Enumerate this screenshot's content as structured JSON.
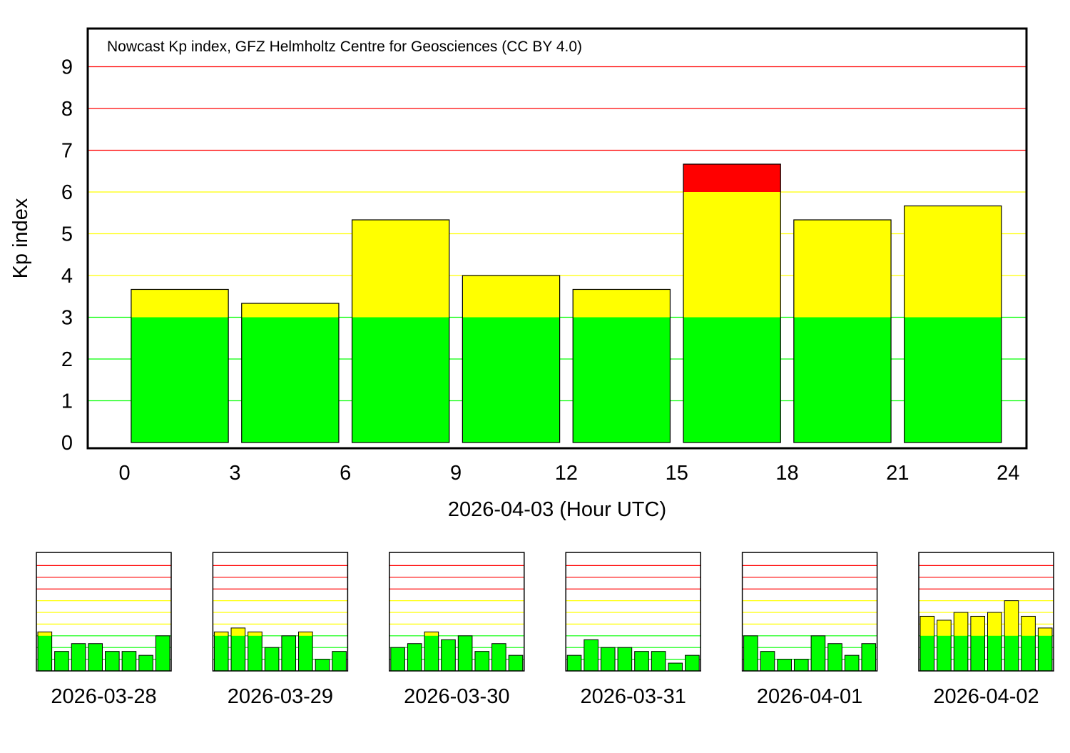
{
  "colors": {
    "green": "#00ff00",
    "yellow": "#ffff00",
    "red": "#ff0000",
    "grid_green": "#00ff00",
    "grid_yellow": "#ffff00",
    "grid_red": "#ff0000",
    "axis": "#000000"
  },
  "chart_data": [
    {
      "id": "main",
      "type": "bar",
      "title": "Nowcast Kp index, GFZ Helmholtz Centre for Geosciences (CC BY 4.0)",
      "xlabel": "2026-04-03 (Hour UTC)",
      "ylabel": "Kp index",
      "xlim": [
        -1,
        24.5
      ],
      "ylim": [
        0,
        10
      ],
      "xticks": [
        0,
        3,
        6,
        9,
        12,
        15,
        18,
        21,
        24
      ],
      "yticks": [
        0,
        1,
        2,
        3,
        4,
        5,
        6,
        7,
        8,
        9
      ],
      "thresholds": {
        "yellow_from": 3,
        "red_from": 6
      },
      "bars": [
        {
          "start": 0,
          "end": 3,
          "kp": 3.667
        },
        {
          "start": 3,
          "end": 6,
          "kp": 3.333
        },
        {
          "start": 6,
          "end": 9,
          "kp": 5.333
        },
        {
          "start": 9,
          "end": 12,
          "kp": 4.0
        },
        {
          "start": 12,
          "end": 15,
          "kp": 3.667
        },
        {
          "start": 15,
          "end": 18,
          "kp": 6.667
        },
        {
          "start": 18,
          "end": 21,
          "kp": 5.333
        },
        {
          "start": 21,
          "end": 24,
          "kp": 5.667
        }
      ]
    },
    {
      "id": "history",
      "type": "bar",
      "ylim": [
        0,
        10
      ],
      "days": [
        {
          "date": "2026-03-28",
          "values": [
            3.333,
            1.667,
            2.333,
            2.333,
            1.667,
            1.667,
            1.333,
            3.0
          ]
        },
        {
          "date": "2026-03-29",
          "values": [
            3.333,
            3.667,
            3.333,
            2.0,
            3.0,
            3.333,
            1.0,
            1.667
          ]
        },
        {
          "date": "2026-03-30",
          "values": [
            2.0,
            2.333,
            3.333,
            2.667,
            3.0,
            1.667,
            2.333,
            1.333
          ]
        },
        {
          "date": "2026-03-31",
          "values": [
            1.333,
            2.667,
            2.0,
            2.0,
            1.667,
            1.667,
            0.667,
            1.333
          ]
        },
        {
          "date": "2026-04-01",
          "values": [
            3.0,
            1.667,
            1.0,
            1.0,
            3.0,
            2.333,
            1.333,
            2.333
          ]
        },
        {
          "date": "2026-04-02",
          "values": [
            4.667,
            4.333,
            5.0,
            4.667,
            5.0,
            6.0,
            4.667,
            3.667
          ]
        }
      ]
    }
  ]
}
